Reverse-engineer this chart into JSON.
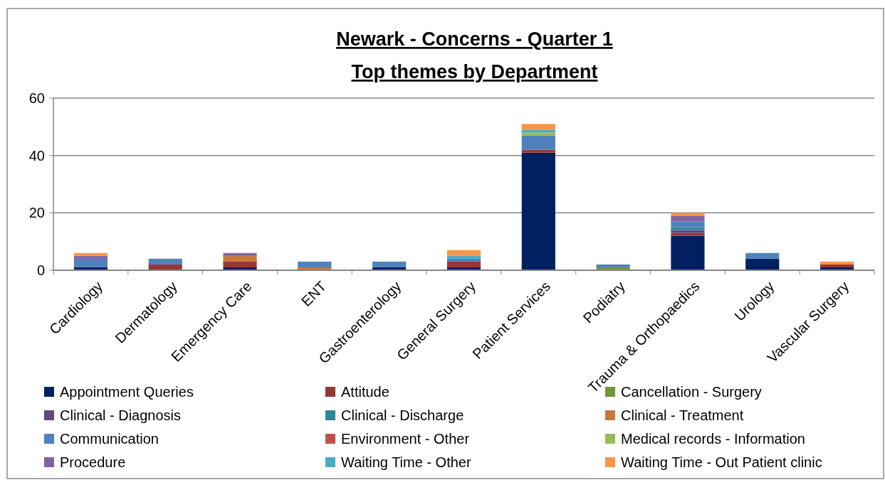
{
  "chart_data": {
    "type": "bar",
    "stacked": true,
    "title": "Newark - Concerns - Quarter 1",
    "subtitle": "Top themes by Department",
    "categories": [
      "Cardiology",
      "Dermatology",
      "Emergency Care",
      "ENT",
      "Gastroenterology",
      "General Surgery",
      "Patient Services",
      "Podiatry",
      "Trauma & Orthopaedics",
      "Urology",
      "Vascular Surgery"
    ],
    "series": [
      {
        "name": "Appointment Queries",
        "color": "#002060",
        "values": [
          1,
          0,
          1,
          0,
          1,
          1,
          41,
          0,
          12,
          4,
          1
        ]
      },
      {
        "name": "Attitude",
        "color": "#953735",
        "values": [
          0,
          2,
          2,
          0,
          0,
          2,
          1,
          0,
          1,
          0,
          1
        ]
      },
      {
        "name": "Cancellation - Surgery",
        "color": "#77933c",
        "values": [
          0,
          0,
          0,
          0,
          0,
          0,
          0,
          1,
          0,
          0,
          0
        ]
      },
      {
        "name": "Clinical -  Diagnosis",
        "color": "#604a7b",
        "values": [
          0,
          0,
          0,
          0,
          0,
          0,
          0,
          0,
          1,
          0,
          0
        ]
      },
      {
        "name": "Clinical -  Discharge",
        "color": "#31859c",
        "values": [
          0,
          0,
          0,
          0,
          0,
          0,
          0,
          0,
          1,
          0,
          0
        ]
      },
      {
        "name": "Clinical -  Treatment",
        "color": "#c8783a",
        "values": [
          0,
          0,
          2,
          1,
          0,
          0,
          0,
          0,
          0,
          0,
          0
        ]
      },
      {
        "name": "Communication",
        "color": "#4f81bd",
        "values": [
          3,
          2,
          0,
          2,
          2,
          1,
          5,
          1,
          2,
          2,
          0
        ]
      },
      {
        "name": "Environment -  Other",
        "color": "#c0504d",
        "values": [
          0,
          0,
          0,
          0,
          0,
          0,
          0,
          0,
          0,
          0,
          0
        ]
      },
      {
        "name": "Medical records - Information",
        "color": "#9bbb59",
        "values": [
          0,
          0,
          0,
          0,
          0,
          0,
          1,
          0,
          0,
          0,
          0
        ]
      },
      {
        "name": "Procedure",
        "color": "#8064a2",
        "values": [
          1,
          0,
          1,
          0,
          0,
          0,
          0,
          0,
          2,
          0,
          0
        ]
      },
      {
        "name": "Waiting Time -  Other",
        "color": "#4bacc6",
        "values": [
          0,
          0,
          0,
          0,
          0,
          1,
          1,
          0,
          0,
          0,
          0
        ]
      },
      {
        "name": "Waiting Time -  Out Patient clinic",
        "color": "#f79646",
        "values": [
          1,
          0,
          0,
          0,
          0,
          2,
          2,
          0,
          1,
          0,
          1
        ]
      }
    ],
    "ylim": [
      0,
      60
    ],
    "yticks": [
      0,
      20,
      40,
      60
    ],
    "grid": "y",
    "legend": "bottom"
  }
}
